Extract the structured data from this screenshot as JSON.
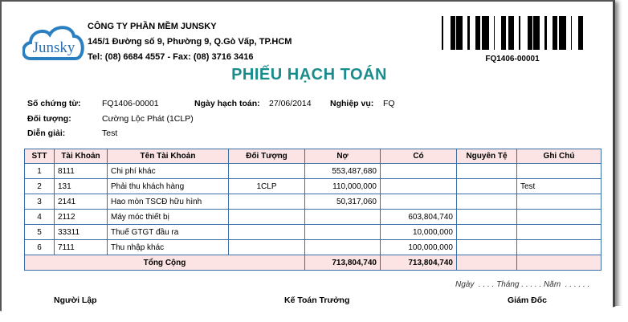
{
  "company": {
    "name": "CÔNG TY PHẦN MỀM JUNSKY",
    "address": "145/1 Đường số 9, Phường 9, Q.Gò Vấp, TP.HCM",
    "contact": "Tel: (08) 6684 4557 - Fax: (08) 3716 3416",
    "logo_text": "Junsky"
  },
  "barcode": {
    "text": "FQ1406-00001"
  },
  "title": "PHIẾU HẠCH TOÁN",
  "info": {
    "so_chung_tu_label": "Số chứng từ:",
    "so_chung_tu": "FQ1406-00001",
    "ngay_label": "Ngày hạch toán:",
    "ngay": "27/06/2014",
    "nghiep_vu_label": "Nghiệp vụ:",
    "nghiep_vu": "FQ",
    "doi_tuong_label": "Đối tượng:",
    "doi_tuong": "Cường Lộc Phát (1CLP)",
    "dien_giai_label": "Diễn giải:",
    "dien_giai": "Test"
  },
  "table": {
    "headers": [
      "STT",
      "Tài Khoản",
      "Tên Tài Khoản",
      "Đối Tượng",
      "Nợ",
      "Có",
      "Nguyên Tệ",
      "Ghi Chú"
    ],
    "rows": [
      [
        "1",
        "8111",
        "Chi phí khác",
        "",
        "553,487,680",
        "",
        "",
        ""
      ],
      [
        "2",
        "131",
        "Phải thu khách hàng",
        "1CLP",
        "110,000,000",
        "",
        "",
        "Test"
      ],
      [
        "3",
        "2141",
        "Hao mòn TSCĐ hữu hình",
        "",
        "50,317,060",
        "",
        "",
        ""
      ],
      [
        "4",
        "2112",
        "Máy móc thiết bị",
        "",
        "",
        "603,804,740",
        "",
        ""
      ],
      [
        "5",
        "33311",
        "Thuế GTGT đầu ra",
        "",
        "",
        "10,000,000",
        "",
        ""
      ],
      [
        "6",
        "7111",
        "Thu nhập khác",
        "",
        "",
        "100,000,000",
        "",
        ""
      ]
    ],
    "total": {
      "label": "Tổng Cộng",
      "no": "713,804,740",
      "co": "713,804,740"
    }
  },
  "footer": {
    "date_line": "Ngày  . . . . Tháng . . . . . Năm  . . . . . .",
    "nguoi_lap": "Người Lập",
    "ke_toan": "Kế Toán Trưởng",
    "giam_doc": "Giám Đốc"
  }
}
